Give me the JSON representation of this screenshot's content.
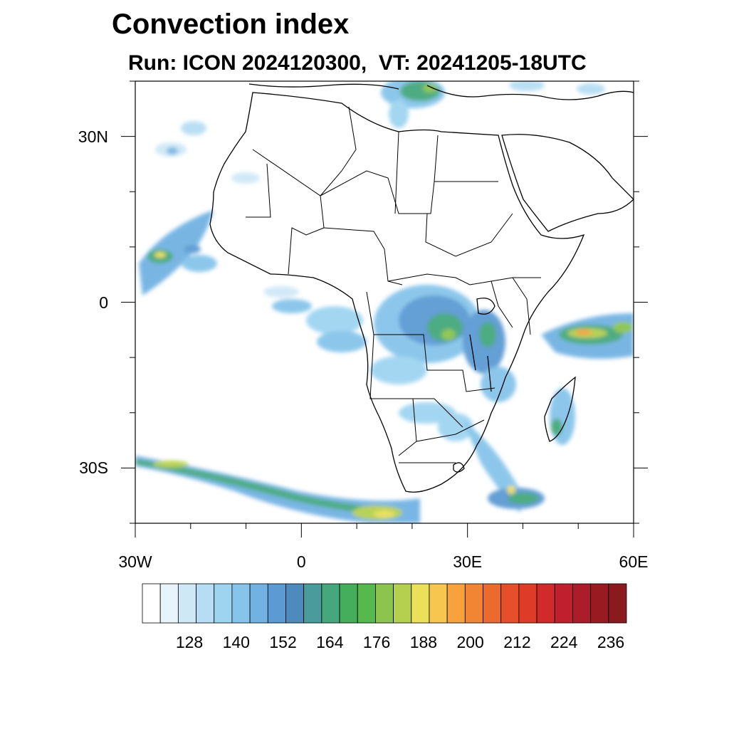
{
  "title": "Convection index",
  "subtitle": "Run: ICON 2024120300,  VT: 20241205-18UTC",
  "map": {
    "lon_range": [
      -30,
      60
    ],
    "lat_range": [
      -40,
      40
    ],
    "lat_ticks": [
      {
        "value": 30,
        "label": "30N"
      },
      {
        "value": 0,
        "label": "0"
      },
      {
        "value": -30,
        "label": "30S"
      }
    ],
    "lon_ticks": [
      {
        "value": -30,
        "label": "30W"
      },
      {
        "value": 0,
        "label": "0"
      },
      {
        "value": 30,
        "label": "30E"
      },
      {
        "value": 60,
        "label": "60E"
      }
    ],
    "minor_lon_step": 10,
    "minor_lat_step": 10
  },
  "colorbar": {
    "colors": [
      "#ffffff",
      "#e8f4fb",
      "#cfe8f6",
      "#b6ddf3",
      "#9fd4f1",
      "#86c4ea",
      "#72b2e2",
      "#5c9ad3",
      "#4d8bbd",
      "#4a9c9c",
      "#45a87c",
      "#44ae5c",
      "#55b94d",
      "#8cc44e",
      "#b5d04f",
      "#eae05a",
      "#f7c64f",
      "#f7a23c",
      "#f28534",
      "#eb6a2e",
      "#e5502b",
      "#de3b29",
      "#d02a2b",
      "#c0202e",
      "#ad1c2a",
      "#9a1a22",
      "#8a1a1e"
    ],
    "labels": [
      "128",
      "140",
      "152",
      "164",
      "176",
      "188",
      "200",
      "212",
      "224",
      "236"
    ]
  }
}
